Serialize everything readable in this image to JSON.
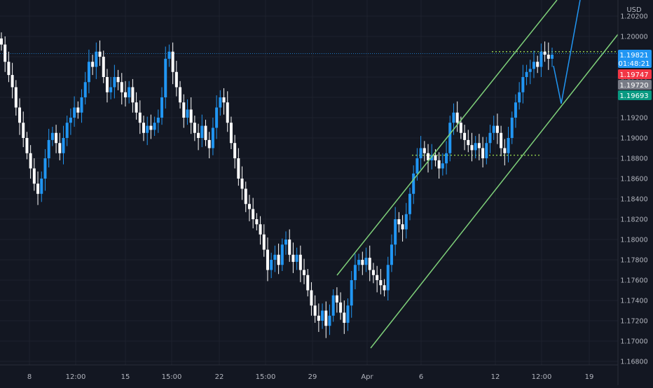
{
  "chart_data": {
    "type": "candlestick",
    "currency": "USD",
    "ylim": [
      1.1672,
      1.2025
    ],
    "y_ticks": [
      "1.16800",
      "1.17000",
      "1.17200",
      "1.17400",
      "1.17600",
      "1.17800",
      "1.18000",
      "1.18200",
      "1.18400",
      "1.18600",
      "1.18800",
      "1.19000",
      "1.19200",
      "1.19400",
      "1.19600",
      "1.19800",
      "1.20000",
      "1.20200"
    ],
    "x_ticks": [
      "8",
      "12:00",
      "15",
      "15:00",
      "22",
      "15:00",
      "29",
      "Apr",
      "6",
      "12",
      "12:00",
      "19"
    ],
    "price_labels": {
      "last": {
        "value": "1.19821",
        "countdown": "01:48:21",
        "color": "#2196f3"
      },
      "p1": {
        "value": "1.19747",
        "color": "#f23645"
      },
      "p2": {
        "value": "1.19720",
        "color": "#787b86"
      },
      "p3": {
        "value": "1.19693",
        "color": "#089981"
      }
    },
    "last_price": 1.19821,
    "horizontal_levels": [
      {
        "value": 1.1983,
        "style": "dotted",
        "color": "#2196f3"
      },
      {
        "value": 1.1985,
        "style": "dotted",
        "color": "#8bc34a"
      },
      {
        "value": 1.1883,
        "style": "dotted",
        "color": "#8bc34a"
      }
    ],
    "channel_color": "#7fd17a",
    "projection_color": "#2196f3",
    "candles_close": [
      1.1992,
      1.1975,
      1.1962,
      1.195,
      1.193,
      1.1915,
      1.19,
      1.1885,
      1.187,
      1.1855,
      1.1845,
      1.186,
      1.188,
      1.1898,
      1.1905,
      1.1895,
      1.1885,
      1.19,
      1.1915,
      1.192,
      1.193,
      1.1925,
      1.194,
      1.1955,
      1.1975,
      1.197,
      1.1985,
      1.198,
      1.196,
      1.1945,
      1.195,
      1.196,
      1.1955,
      1.1945,
      1.194,
      1.195,
      1.1935,
      1.1925,
      1.1915,
      1.1905,
      1.1912,
      1.1908,
      1.1915,
      1.192,
      1.194,
      1.1978,
      1.1985,
      1.1965,
      1.195,
      1.1935,
      1.192,
      1.1928,
      1.1915,
      1.1905,
      1.19,
      1.1912,
      1.1898,
      1.189,
      1.191,
      1.193,
      1.194,
      1.1935,
      1.1915,
      1.1895,
      1.188,
      1.186,
      1.185,
      1.1835,
      1.183,
      1.182,
      1.1815,
      1.1805,
      1.179,
      1.177,
      1.178,
      1.1785,
      1.1775,
      1.1795,
      1.18,
      1.1785,
      1.1778,
      1.1785,
      1.177,
      1.1765,
      1.175,
      1.1735,
      1.1725,
      1.172,
      1.173,
      1.1715,
      1.1725,
      1.1745,
      1.1738,
      1.1728,
      1.1718,
      1.1735,
      1.176,
      1.1775,
      1.178,
      1.1775,
      1.1782,
      1.177,
      1.1765,
      1.176,
      1.1755,
      1.175,
      1.1775,
      1.1795,
      1.182,
      1.1815,
      1.181,
      1.1825,
      1.1845,
      1.1865,
      1.188,
      1.189,
      1.1885,
      1.1878,
      1.1883,
      1.1878,
      1.187,
      1.1875,
      1.1885,
      1.1915,
      1.1925,
      1.1915,
      1.1905,
      1.1898,
      1.1893,
      1.1888,
      1.1895,
      1.189,
      1.188,
      1.1895,
      1.1905,
      1.1912,
      1.1905,
      1.189,
      1.1885,
      1.19,
      1.192,
      1.1935,
      1.1945,
      1.196,
      1.1965,
      1.1968,
      1.1975,
      1.197,
      1.1985,
      1.1982,
      1.1978,
      1.1982
    ]
  }
}
